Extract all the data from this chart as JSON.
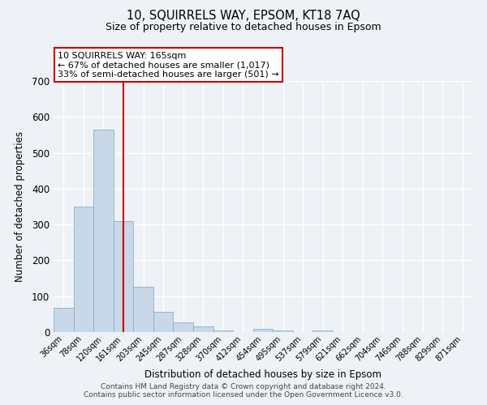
{
  "title": "10, SQUIRRELS WAY, EPSOM, KT18 7AQ",
  "subtitle": "Size of property relative to detached houses in Epsom",
  "xlabel": "Distribution of detached houses by size in Epsom",
  "ylabel": "Number of detached properties",
  "bar_labels": [
    "36sqm",
    "78sqm",
    "120sqm",
    "161sqm",
    "203sqm",
    "245sqm",
    "287sqm",
    "328sqm",
    "370sqm",
    "412sqm",
    "454sqm",
    "495sqm",
    "537sqm",
    "579sqm",
    "621sqm",
    "662sqm",
    "704sqm",
    "746sqm",
    "788sqm",
    "829sqm",
    "871sqm"
  ],
  "bar_values": [
    68,
    350,
    565,
    310,
    127,
    57,
    27,
    15,
    5,
    0,
    10,
    5,
    0,
    4,
    0,
    0,
    0,
    0,
    0,
    0,
    0
  ],
  "bar_color": "#c8d8e8",
  "bar_edge_color": "#8ab0cc",
  "vline_x": 3,
  "vline_color": "#cc0000",
  "annotation_line1": "10 SQUIRRELS WAY: 165sqm",
  "annotation_line2": "← 67% of detached houses are smaller (1,017)",
  "annotation_line3": "33% of semi-detached houses are larger (501) →",
  "annotation_box_color": "#ffffff",
  "annotation_box_edge": "#cc0000",
  "ylim": [
    0,
    700
  ],
  "yticks": [
    0,
    100,
    200,
    300,
    400,
    500,
    600,
    700
  ],
  "background_color": "#eef2f7",
  "grid_color": "#ffffff",
  "footer_line1": "Contains HM Land Registry data © Crown copyright and database right 2024.",
  "footer_line2": "Contains public sector information licensed under the Open Government Licence v3.0."
}
